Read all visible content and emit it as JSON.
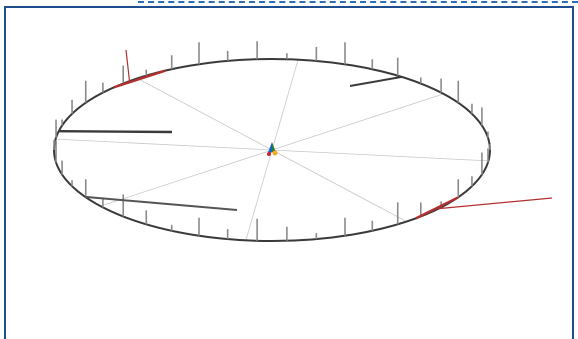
{
  "viewport": {
    "name": "3d-structure-viewport",
    "colors": {
      "frame": "#1f4e8c",
      "dash": "#2a6fb5",
      "ring": "#3a3a3a",
      "guide": "#c8c8c8",
      "highlight": "#b03030",
      "post": "#8a8a8a"
    },
    "axis_gizmo_colors": [
      "#2e7d32",
      "#1565c0",
      "#c62828",
      "#f9a825"
    ]
  }
}
